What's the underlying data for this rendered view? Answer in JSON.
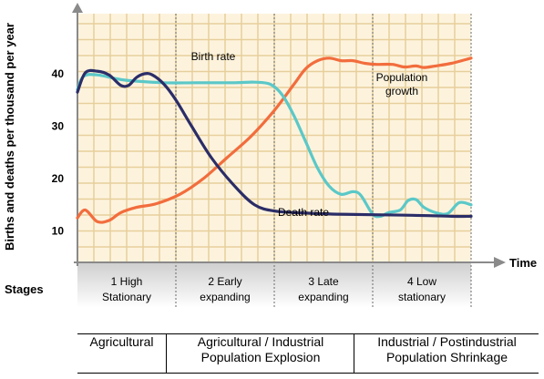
{
  "chart_data": {
    "type": "line",
    "ylabel": "Births and deaths per thousand per year",
    "xlabel": "Time",
    "yticks": [
      10,
      20,
      30,
      40
    ],
    "ylim": [
      4,
      52
    ],
    "xlim": [
      0,
      100
    ],
    "grid": true,
    "series": [
      {
        "name": "Birth rate",
        "color": "#5bc8c8",
        "points": [
          [
            0,
            37
          ],
          [
            1.5,
            39.5
          ],
          [
            5,
            39.8
          ],
          [
            12,
            38.8
          ],
          [
            22,
            38.3
          ],
          [
            30,
            38.3
          ],
          [
            40,
            38.3
          ],
          [
            45,
            38.4
          ],
          [
            49,
            38
          ],
          [
            52,
            36
          ],
          [
            55,
            32
          ],
          [
            58,
            27
          ],
          [
            61,
            22
          ],
          [
            64,
            18.5
          ],
          [
            67,
            17
          ],
          [
            70,
            17.5
          ],
          [
            72,
            16.8
          ],
          [
            75,
            13.2
          ],
          [
            77,
            12.8
          ],
          [
            79,
            13.5
          ],
          [
            82,
            14
          ],
          [
            84,
            15.8
          ],
          [
            86,
            16
          ],
          [
            88,
            14.5
          ],
          [
            91,
            13.5
          ],
          [
            94,
            13.3
          ],
          [
            97,
            15.4
          ],
          [
            100,
            15
          ]
        ]
      },
      {
        "name": "Death rate",
        "color": "#2b2d68",
        "points": [
          [
            0,
            36.5
          ],
          [
            2,
            40.2
          ],
          [
            5,
            40.5
          ],
          [
            8,
            39.8
          ],
          [
            11,
            37.8
          ],
          [
            13,
            37.8
          ],
          [
            15,
            39.3
          ],
          [
            17,
            40
          ],
          [
            19,
            39.8
          ],
          [
            22,
            38
          ],
          [
            25,
            35
          ],
          [
            29,
            30
          ],
          [
            34,
            24
          ],
          [
            40,
            18.5
          ],
          [
            45,
            15
          ],
          [
            50,
            13.8
          ],
          [
            58,
            13.4
          ],
          [
            66,
            13.2
          ],
          [
            75,
            13.1
          ],
          [
            85,
            13
          ],
          [
            95,
            12.8
          ],
          [
            100,
            12.8
          ]
        ]
      },
      {
        "name": "Population growth",
        "color": "#f26d3d",
        "points": [
          [
            0,
            12.5
          ],
          [
            2,
            14
          ],
          [
            5,
            11.8
          ],
          [
            8,
            12
          ],
          [
            11,
            13.5
          ],
          [
            15,
            14.5
          ],
          [
            20,
            15.2
          ],
          [
            26,
            17
          ],
          [
            32,
            20
          ],
          [
            38,
            24
          ],
          [
            44,
            28
          ],
          [
            50,
            33
          ],
          [
            55,
            38
          ],
          [
            58,
            41
          ],
          [
            61,
            42.5
          ],
          [
            64,
            43
          ],
          [
            67,
            42.5
          ],
          [
            70,
            42.5
          ],
          [
            73,
            42
          ],
          [
            76,
            41.8
          ],
          [
            80,
            41.8
          ],
          [
            83,
            41.3
          ],
          [
            86,
            41.5
          ],
          [
            88,
            41.2
          ],
          [
            91,
            41.5
          ],
          [
            95,
            42
          ],
          [
            100,
            43
          ]
        ]
      }
    ],
    "annotations": [
      {
        "text": "Birth rate",
        "series": "Birth rate"
      },
      {
        "text": "Death rate",
        "series": "Death rate"
      },
      {
        "text": "Population\ngrowth",
        "series": "Population growth"
      }
    ],
    "stage_label": "Stages",
    "stages": [
      {
        "line1": "1 High",
        "line2": "Stationary"
      },
      {
        "line1": "2 Early",
        "line2": "expanding"
      },
      {
        "line1": "3 Late",
        "line2": "expanding"
      },
      {
        "line1": "4 Low",
        "line2": "stationary"
      }
    ]
  },
  "economy_rows": [
    {
      "line1": "Agricultural",
      "line2": ""
    },
    {
      "line1": "Agricultural / Industrial",
      "line2": "Population Explosion"
    },
    {
      "line1": "Industrial / Postindustrial",
      "line2": "Population Shrinkage"
    }
  ]
}
